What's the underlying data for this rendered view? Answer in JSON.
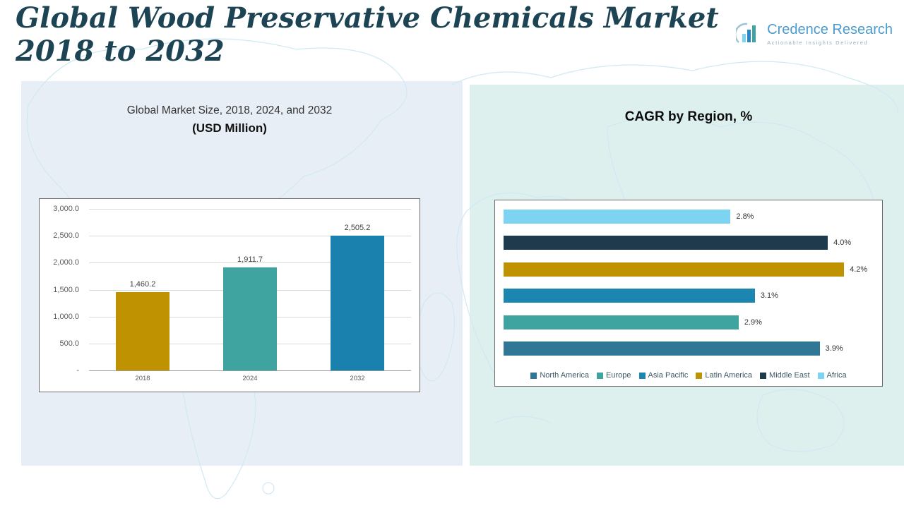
{
  "page": {
    "title": "Global Wood Preservative Chemicals Market 2018 to 2032"
  },
  "logo": {
    "name": "Credence Research",
    "tagline": "Actionable Insights Delivered"
  },
  "chart_data": [
    {
      "type": "bar",
      "title": "Global Market Size, 2018, 2024, and 2032",
      "subtitle": "(USD Million)",
      "categories": [
        "2018",
        "2024",
        "2032"
      ],
      "values": [
        1460.2,
        1911.7,
        2505.2
      ],
      "value_labels": [
        "1,460.2",
        "1,911.7",
        "2,505.2"
      ],
      "bar_colors": [
        "#bf9202",
        "#3fa3a0",
        "#1a80ad"
      ],
      "ylim": [
        0,
        3000
      ],
      "ytick_labels": [
        "3,000.0",
        "2,500.0",
        "2,000.0",
        "1,500.0",
        "1,000.0",
        "500.0",
        "-"
      ],
      "grid": true,
      "legend_position": "none",
      "xlabel": "",
      "ylabel": ""
    },
    {
      "type": "bar-horizontal",
      "title": "CAGR by Region, %",
      "categories": [
        "Africa",
        "Middle East",
        "Latin America",
        "Asia Pacific",
        "Europe",
        "North America"
      ],
      "values": [
        2.8,
        4.0,
        4.2,
        3.1,
        2.9,
        3.9
      ],
      "value_labels": [
        "2.8%",
        "4.0%",
        "4.2%",
        "3.1%",
        "2.9%",
        "3.9%"
      ],
      "bar_colors": [
        "#7cd3f2",
        "#1e3a4c",
        "#bf9202",
        "#1d86b0",
        "#3fa3a0",
        "#2f7794"
      ],
      "xlim": [
        0,
        4.6
      ],
      "grid": false,
      "legend_position": "bottom",
      "legend": [
        {
          "label": "North America",
          "color": "#2f7794"
        },
        {
          "label": "Europe",
          "color": "#3fa3a0"
        },
        {
          "label": "Asia Pacific",
          "color": "#1d86b0"
        },
        {
          "label": "Latin America",
          "color": "#bf9202"
        },
        {
          "label": "Middle East",
          "color": "#1e3a4c"
        },
        {
          "label": "Africa",
          "color": "#7cd3f2"
        }
      ],
      "xlabel": "",
      "ylabel": ""
    }
  ]
}
